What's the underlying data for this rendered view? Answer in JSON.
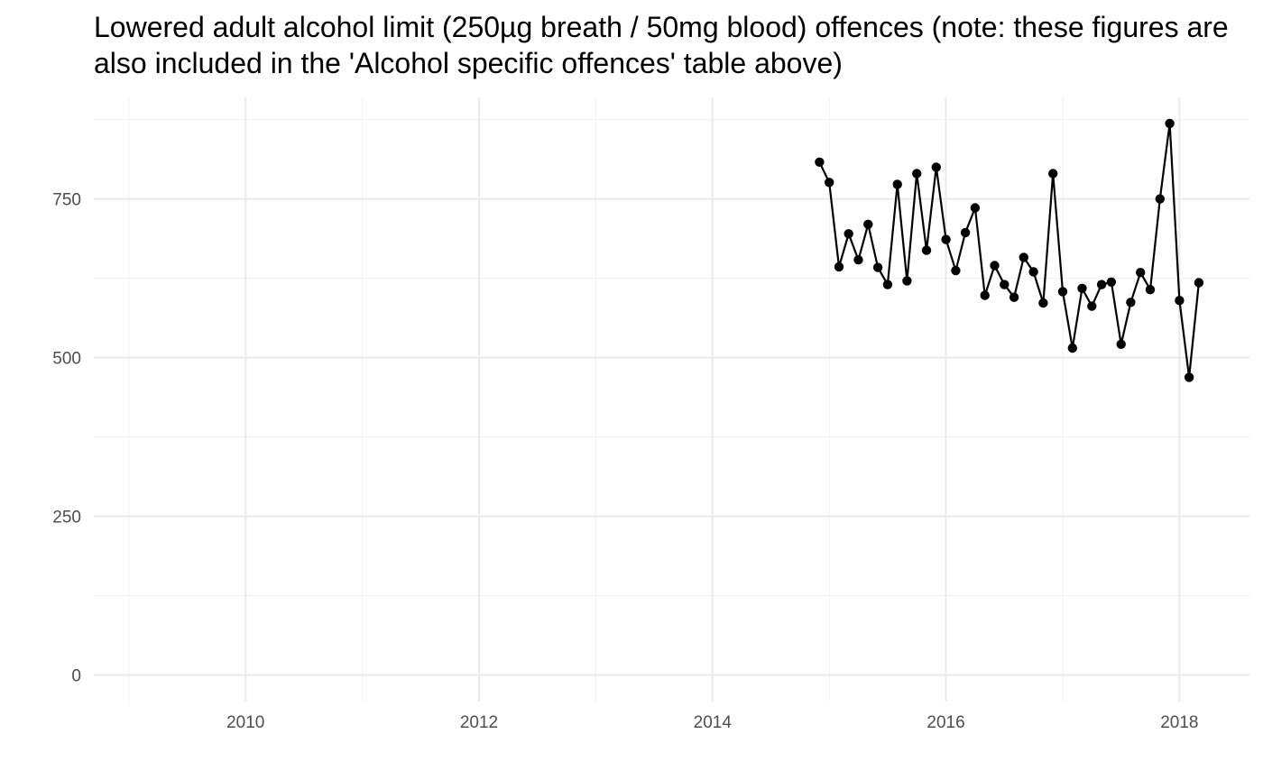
{
  "chart_data": {
    "type": "line",
    "title": "Lowered adult alcohol limit (250µg breath / 50mg blood) offences (note: these figures are also included in the 'Alcohol specific offences' table above)",
    "xlabel": "",
    "ylabel": "",
    "xlim": [
      2008.7,
      2018.6
    ],
    "ylim": [
      -42,
      910
    ],
    "x_ticks": [
      2010,
      2012,
      2014,
      2016,
      2018
    ],
    "x_tick_labels": [
      "2010",
      "2012",
      "2014",
      "2016",
      "2018"
    ],
    "y_ticks": [
      0,
      250,
      500,
      750
    ],
    "y_tick_labels": [
      "0",
      "250",
      "500",
      "750"
    ],
    "grid": true,
    "legend": "none",
    "series": [
      {
        "color": "#000000",
        "points": [
          {
            "x": "2014-12",
            "y": 808
          },
          {
            "x": "2015-01",
            "y": 776
          },
          {
            "x": "2015-02",
            "y": 643
          },
          {
            "x": "2015-03",
            "y": 695
          },
          {
            "x": "2015-04",
            "y": 654
          },
          {
            "x": "2015-05",
            "y": 710
          },
          {
            "x": "2015-06",
            "y": 642
          },
          {
            "x": "2015-07",
            "y": 615
          },
          {
            "x": "2015-08",
            "y": 773
          },
          {
            "x": "2015-09",
            "y": 621
          },
          {
            "x": "2015-10",
            "y": 790
          },
          {
            "x": "2015-11",
            "y": 669
          },
          {
            "x": "2015-12",
            "y": 800
          },
          {
            "x": "2016-01",
            "y": 686
          },
          {
            "x": "2016-02",
            "y": 637
          },
          {
            "x": "2016-03",
            "y": 697
          },
          {
            "x": "2016-04",
            "y": 736
          },
          {
            "x": "2016-05",
            "y": 598
          },
          {
            "x": "2016-06",
            "y": 645
          },
          {
            "x": "2016-07",
            "y": 615
          },
          {
            "x": "2016-08",
            "y": 595
          },
          {
            "x": "2016-09",
            "y": 658
          },
          {
            "x": "2016-10",
            "y": 635
          },
          {
            "x": "2016-11",
            "y": 586
          },
          {
            "x": "2016-12",
            "y": 790
          },
          {
            "x": "2017-01",
            "y": 604
          },
          {
            "x": "2017-02",
            "y": 515
          },
          {
            "x": "2017-03",
            "y": 609
          },
          {
            "x": "2017-04",
            "y": 581
          },
          {
            "x": "2017-05",
            "y": 615
          },
          {
            "x": "2017-06",
            "y": 619
          },
          {
            "x": "2017-07",
            "y": 521
          },
          {
            "x": "2017-08",
            "y": 587
          },
          {
            "x": "2017-09",
            "y": 634
          },
          {
            "x": "2017-10",
            "y": 607
          },
          {
            "x": "2017-11",
            "y": 750
          },
          {
            "x": "2017-12",
            "y": 869
          },
          {
            "x": "2018-01",
            "y": 590
          },
          {
            "x": "2018-02",
            "y": 469
          },
          {
            "x": "2018-03",
            "y": 618
          }
        ]
      }
    ]
  }
}
